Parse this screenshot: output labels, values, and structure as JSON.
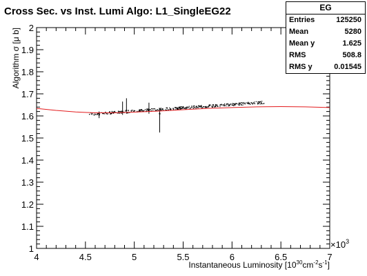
{
  "chart_data": {
    "type": "scatter",
    "title": "Cross Sec. vs Inst. Lumi Algo: L1_SingleEG22",
    "xlabel_main": "Instantaneous Luminosity [10",
    "xlabel_exp1": "30",
    "xlabel_mid": "cm",
    "xlabel_exp2": "-2",
    "xlabel_s": "s",
    "xlabel_exp3": "-1",
    "xlabel_end": "]",
    "ylabel": "Algorithm σ [μ b]",
    "x_multiplier_base": "×10",
    "x_multiplier_exp": "3",
    "xlim": [
      4,
      7
    ],
    "ylim": [
      1,
      2
    ],
    "x_ticks": [
      "4",
      "4.5",
      "5",
      "5.5",
      "6",
      "6.5",
      "7"
    ],
    "y_ticks": [
      "1",
      "1.1",
      "1.2",
      "1.3",
      "1.4",
      "1.5",
      "1.6",
      "1.7",
      "1.8",
      "1.9",
      "2"
    ],
    "x_tick_values": [
      4,
      4.5,
      5,
      5.5,
      6,
      6.5,
      7
    ],
    "y_tick_values": [
      1,
      1.1,
      1.2,
      1.3,
      1.4,
      1.5,
      1.6,
      1.7,
      1.8,
      1.9,
      2
    ],
    "scatter_band": {
      "x_start": 4.54,
      "x_end": 6.34,
      "y_start": 1.608,
      "y_end": 1.662
    },
    "error_bars": [
      {
        "x": 4.64,
        "y": 1.605,
        "low": 1.59,
        "high": 1.62
      },
      {
        "x": 4.88,
        "y": 1.62,
        "low": 1.605,
        "high": 1.665
      },
      {
        "x": 4.92,
        "y": 1.625,
        "low": 1.61,
        "high": 1.68
      },
      {
        "x": 5.15,
        "y": 1.625,
        "low": 1.61,
        "high": 1.66
      },
      {
        "x": 5.26,
        "y": 1.61,
        "low": 1.525,
        "high": 1.635
      }
    ],
    "fit_curve": {
      "x": [
        4.0,
        4.2,
        4.4,
        4.6,
        4.8,
        5.0,
        5.25,
        5.5,
        5.75,
        6.0,
        6.25,
        6.5,
        6.75,
        7.0
      ],
      "y": [
        1.634,
        1.625,
        1.618,
        1.614,
        1.614,
        1.617,
        1.622,
        1.628,
        1.634,
        1.638,
        1.641,
        1.642,
        1.641,
        1.638
      ],
      "color": "#e31a1c"
    },
    "stats": {
      "title": "EG",
      "rows": [
        {
          "label": "Entries",
          "value": "125250"
        },
        {
          "label": "Mean",
          "value": "5280"
        },
        {
          "label": "Mean y",
          "value": "1.625"
        },
        {
          "label": "RMS",
          "value": "508.8"
        },
        {
          "label": "RMS y",
          "value": "0.01545"
        }
      ]
    }
  }
}
